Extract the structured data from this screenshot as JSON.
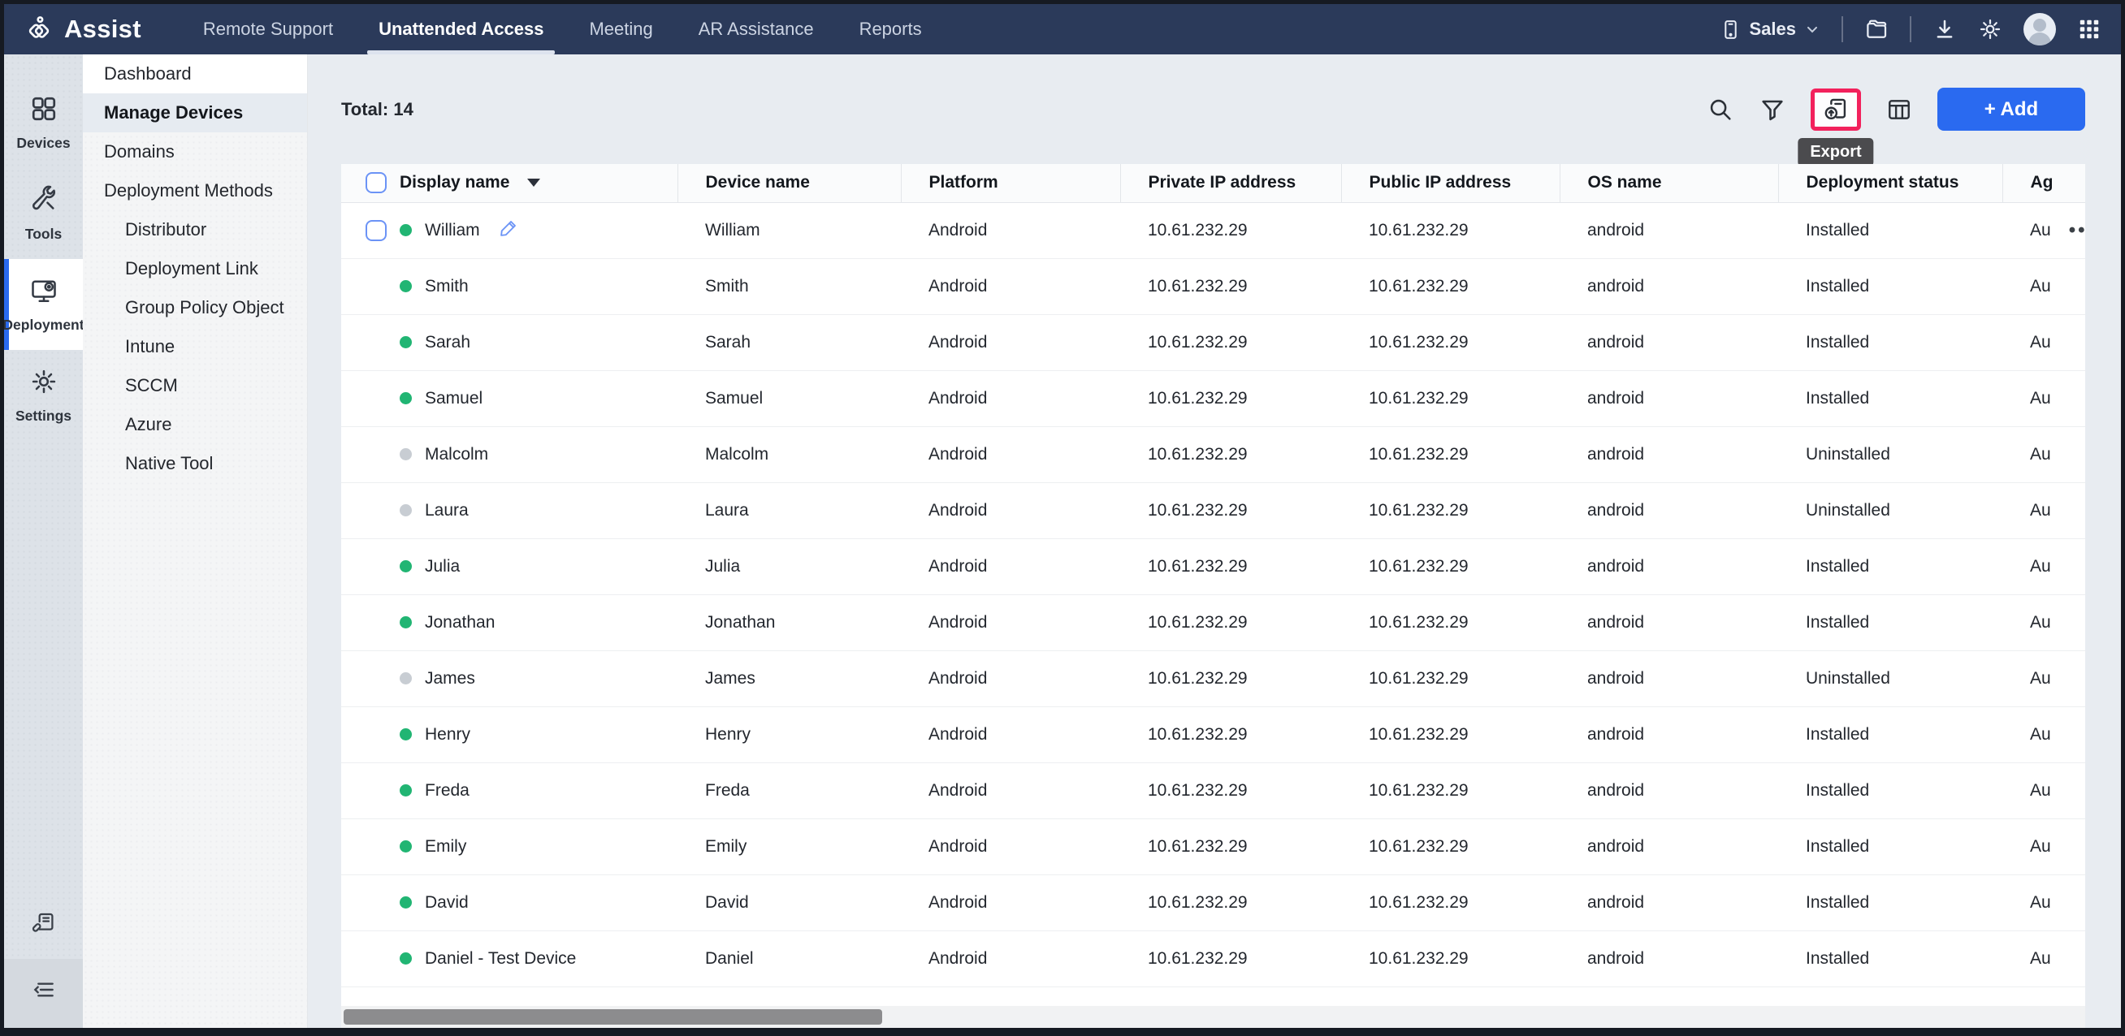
{
  "topbar": {
    "brand": "Assist",
    "tabs": [
      {
        "label": "Remote Support",
        "active": false
      },
      {
        "label": "Unattended Access",
        "active": true
      },
      {
        "label": "Meeting",
        "active": false
      },
      {
        "label": "AR Assistance",
        "active": false
      },
      {
        "label": "Reports",
        "active": false
      }
    ],
    "portal_label": "Sales"
  },
  "rail": [
    {
      "label": "Devices",
      "icon": "devices-icon",
      "active": false
    },
    {
      "label": "Tools",
      "icon": "tools-icon",
      "active": false
    },
    {
      "label": "Deployment",
      "icon": "deployment-icon",
      "active": true
    },
    {
      "label": "Settings",
      "icon": "settings-icon",
      "active": false
    }
  ],
  "menu": [
    {
      "label": "Dashboard",
      "level": 0,
      "active": false,
      "white": true
    },
    {
      "label": "Manage Devices",
      "level": 0,
      "active": true,
      "white": false
    },
    {
      "label": "Domains",
      "level": 0,
      "active": false,
      "white": false
    },
    {
      "label": "Deployment Methods",
      "level": 0,
      "active": false,
      "white": false
    },
    {
      "label": "Distributor",
      "level": 1,
      "active": false,
      "white": false
    },
    {
      "label": "Deployment Link",
      "level": 1,
      "active": false,
      "white": false
    },
    {
      "label": "Group Policy Object",
      "level": 1,
      "active": false,
      "white": false
    },
    {
      "label": "Intune",
      "level": 1,
      "active": false,
      "white": false
    },
    {
      "label": "SCCM",
      "level": 1,
      "active": false,
      "white": false
    },
    {
      "label": "Azure",
      "level": 1,
      "active": false,
      "white": false
    },
    {
      "label": "Native Tool",
      "level": 1,
      "active": false,
      "white": false
    }
  ],
  "content": {
    "total_label": "Total: 14",
    "export_tooltip": "Export",
    "add_button": "+ Add"
  },
  "table": {
    "columns": [
      "Display name",
      "Device name",
      "Platform",
      "Private IP address",
      "Public IP address",
      "OS name",
      "Deployment status",
      "Ag"
    ],
    "rows": [
      {
        "display": "William",
        "status": "online",
        "device": "William",
        "platform": "Android",
        "private_ip": "10.61.232.29",
        "public_ip": "10.61.232.29",
        "os": "android",
        "deployment": "Installed",
        "agent": "Au",
        "hover": true
      },
      {
        "display": "Smith",
        "status": "online",
        "device": "Smith",
        "platform": "Android",
        "private_ip": "10.61.232.29",
        "public_ip": "10.61.232.29",
        "os": "android",
        "deployment": "Installed",
        "agent": "Au",
        "hover": false
      },
      {
        "display": "Sarah",
        "status": "online",
        "device": "Sarah",
        "platform": "Android",
        "private_ip": "10.61.232.29",
        "public_ip": "10.61.232.29",
        "os": "android",
        "deployment": "Installed",
        "agent": "Au",
        "hover": false
      },
      {
        "display": "Samuel",
        "status": "online",
        "device": "Samuel",
        "platform": "Android",
        "private_ip": "10.61.232.29",
        "public_ip": "10.61.232.29",
        "os": "android",
        "deployment": "Installed",
        "agent": "Au",
        "hover": false
      },
      {
        "display": "Malcolm",
        "status": "offline",
        "device": "Malcolm",
        "platform": "Android",
        "private_ip": "10.61.232.29",
        "public_ip": "10.61.232.29",
        "os": "android",
        "deployment": "Uninstalled",
        "agent": "Au",
        "hover": false
      },
      {
        "display": "Laura",
        "status": "offline",
        "device": "Laura",
        "platform": "Android",
        "private_ip": "10.61.232.29",
        "public_ip": "10.61.232.29",
        "os": "android",
        "deployment": "Uninstalled",
        "agent": "Au",
        "hover": false
      },
      {
        "display": "Julia",
        "status": "online",
        "device": "Julia",
        "platform": "Android",
        "private_ip": "10.61.232.29",
        "public_ip": "10.61.232.29",
        "os": "android",
        "deployment": "Installed",
        "agent": "Au",
        "hover": false
      },
      {
        "display": "Jonathan",
        "status": "online",
        "device": "Jonathan",
        "platform": "Android",
        "private_ip": "10.61.232.29",
        "public_ip": "10.61.232.29",
        "os": "android",
        "deployment": "Installed",
        "agent": "Au",
        "hover": false
      },
      {
        "display": "James",
        "status": "offline",
        "device": "James",
        "platform": "Android",
        "private_ip": "10.61.232.29",
        "public_ip": "10.61.232.29",
        "os": "android",
        "deployment": "Uninstalled",
        "agent": "Au",
        "hover": false
      },
      {
        "display": "Henry",
        "status": "online",
        "device": "Henry",
        "platform": "Android",
        "private_ip": "10.61.232.29",
        "public_ip": "10.61.232.29",
        "os": "android",
        "deployment": "Installed",
        "agent": "Au",
        "hover": false
      },
      {
        "display": "Freda",
        "status": "online",
        "device": "Freda",
        "platform": "Android",
        "private_ip": "10.61.232.29",
        "public_ip": "10.61.232.29",
        "os": "android",
        "deployment": "Installed",
        "agent": "Au",
        "hover": false
      },
      {
        "display": "Emily",
        "status": "online",
        "device": "Emily",
        "platform": "Android",
        "private_ip": "10.61.232.29",
        "public_ip": "10.61.232.29",
        "os": "android",
        "deployment": "Installed",
        "agent": "Au",
        "hover": false
      },
      {
        "display": "David",
        "status": "online",
        "device": "David",
        "platform": "Android",
        "private_ip": "10.61.232.29",
        "public_ip": "10.61.232.29",
        "os": "android",
        "deployment": "Installed",
        "agent": "Au",
        "hover": false
      },
      {
        "display": "Daniel - Test Device",
        "status": "online",
        "device": "Daniel",
        "platform": "Android",
        "private_ip": "10.61.232.29",
        "public_ip": "10.61.232.29",
        "os": "android",
        "deployment": "Installed",
        "agent": "Au",
        "hover": false
      }
    ]
  },
  "colors": {
    "topbar_navy": "#2b3a5a",
    "accent_blue": "#2a6af0",
    "online_green": "#21b573",
    "offline_gray": "#c8cdd3",
    "export_highlight": "#f2215c",
    "tooltip_bg": "#4b4b4e"
  }
}
